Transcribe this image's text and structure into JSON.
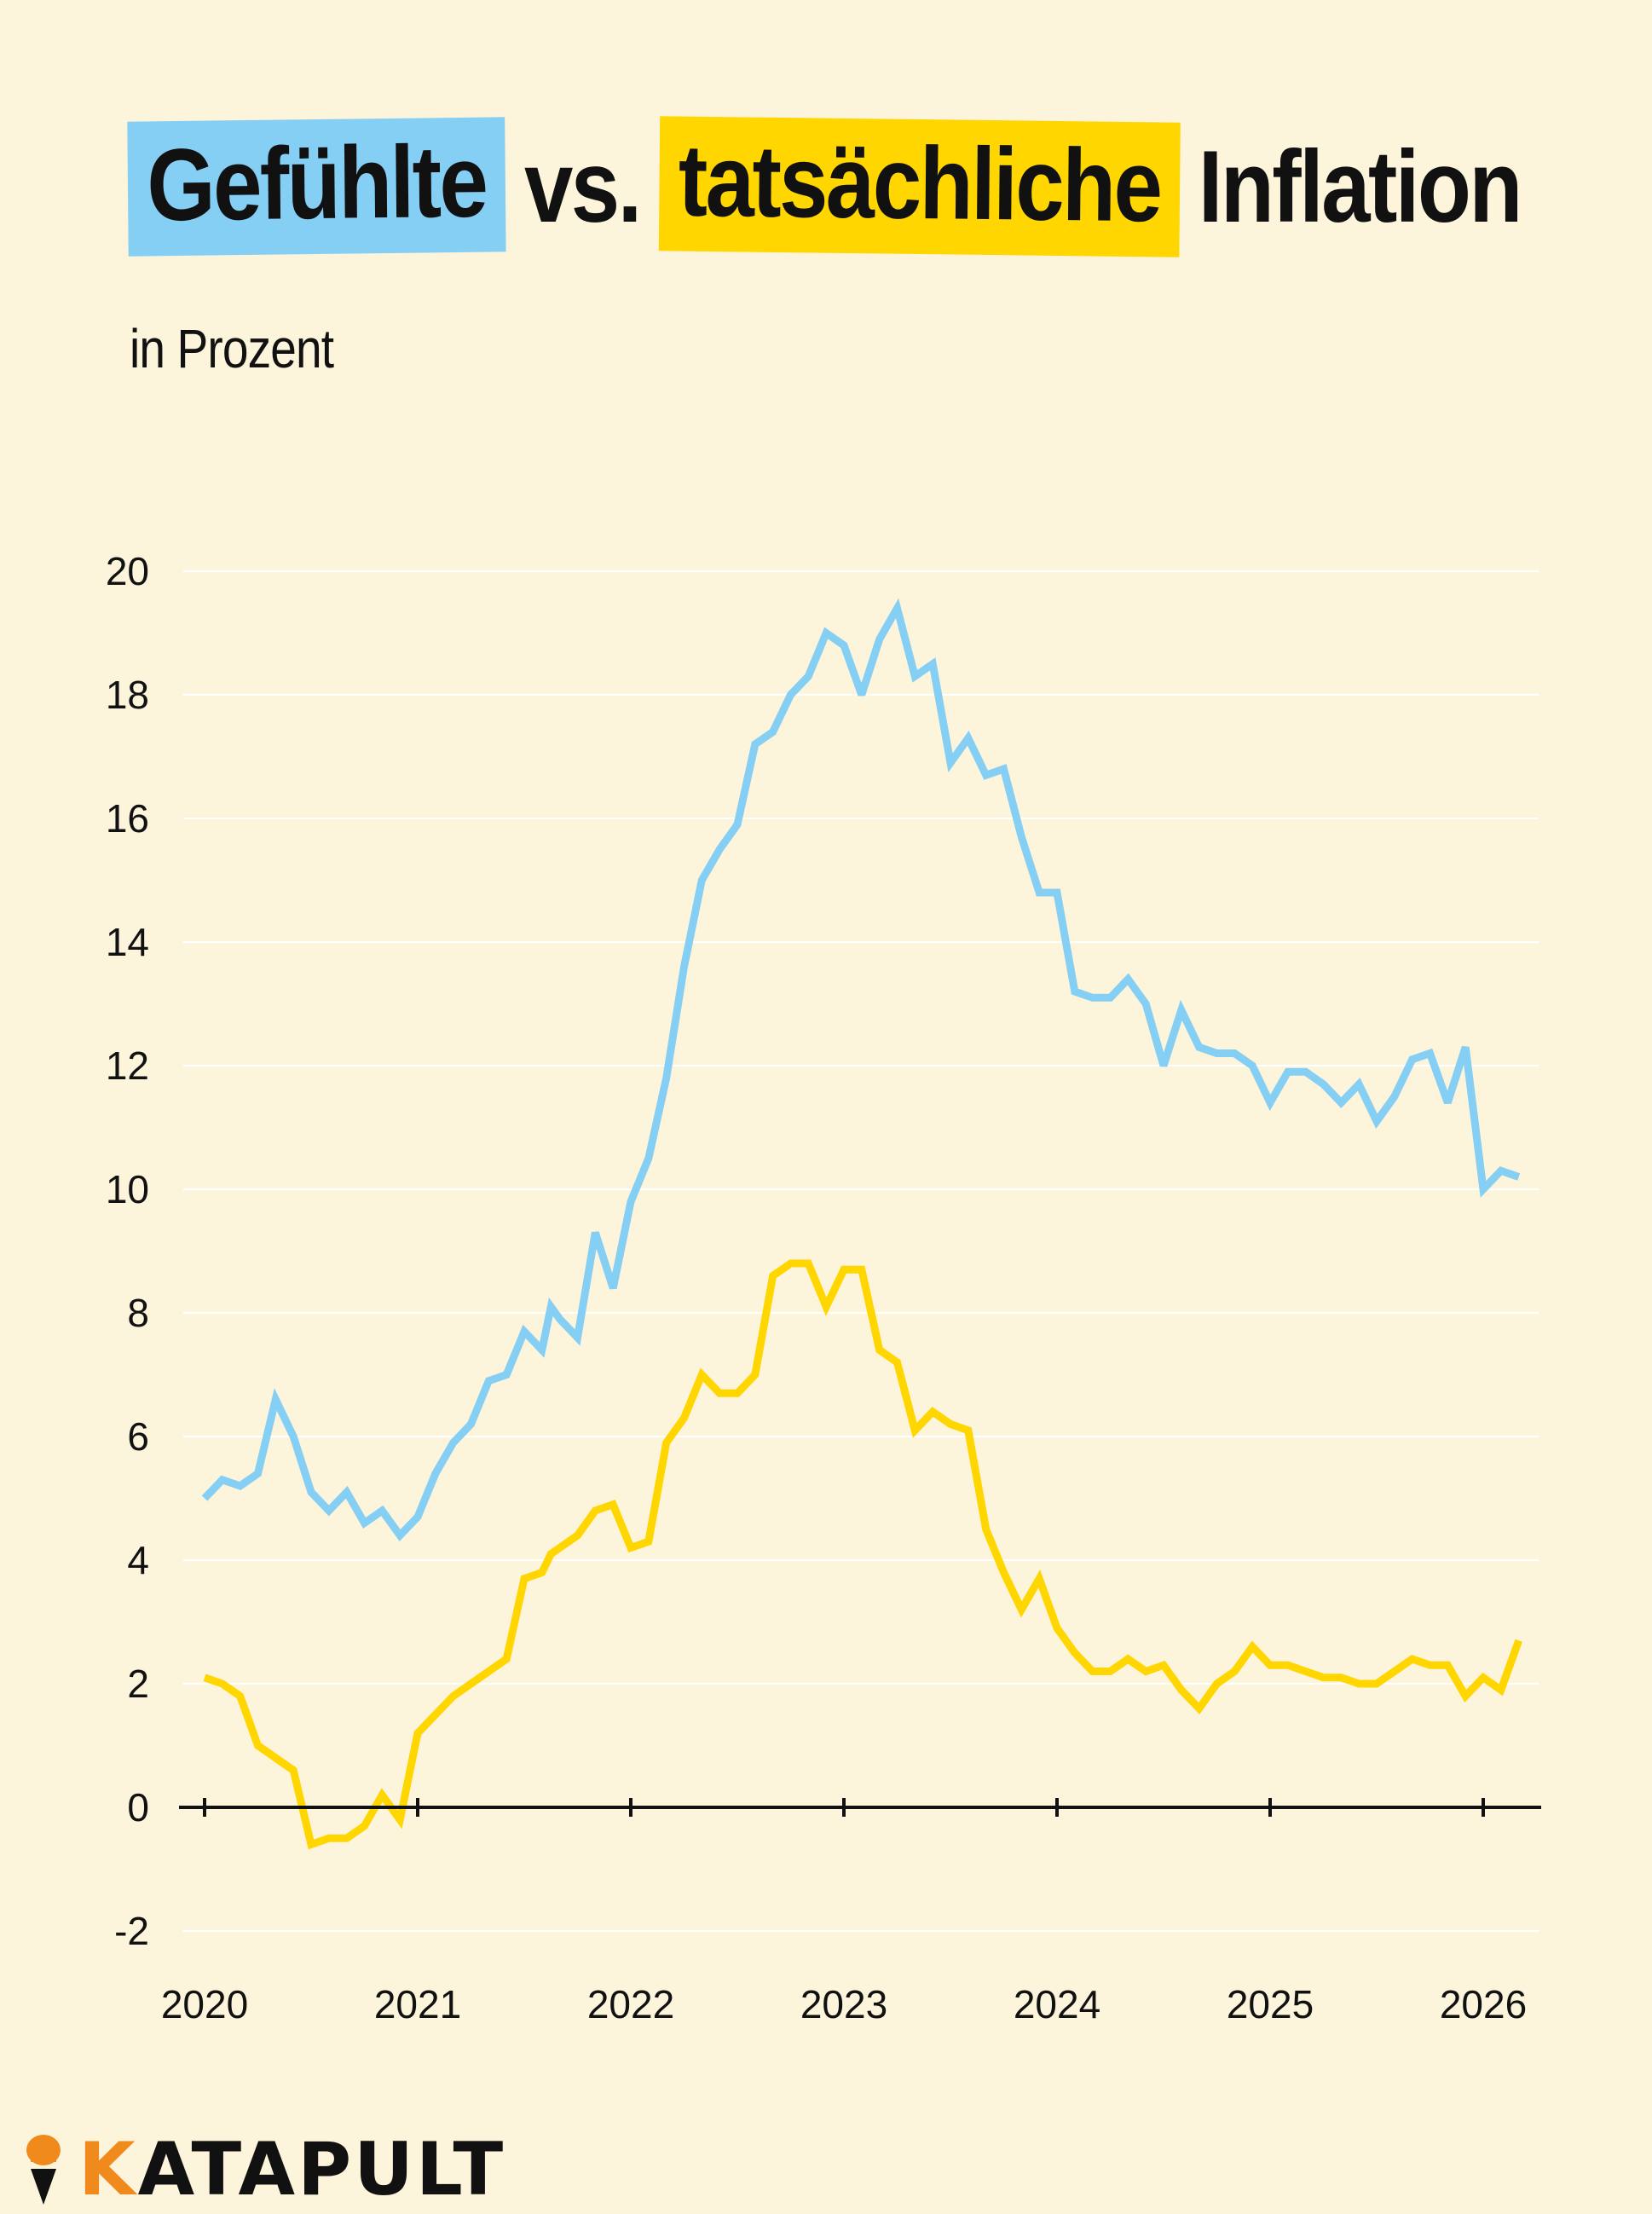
{
  "title": {
    "part1": "Gefühlte",
    "part2": "vs.",
    "part3": "tatsächliche",
    "part4": "Inflation"
  },
  "subtitle": "in Prozent",
  "colors": {
    "background": "#fdf4dc",
    "felt": "#86cff4",
    "actual": "#ffd600",
    "logo_accent": "#f08a1c"
  },
  "logo": {
    "first_letter": "K",
    "rest": "ATAPULT",
    "icon": "catapult-icon"
  },
  "chart_data": {
    "type": "line",
    "ylim": [
      -2,
      20
    ],
    "yticks": [
      -2,
      0,
      2,
      4,
      6,
      8,
      10,
      12,
      14,
      16,
      18,
      20
    ],
    "xlim": [
      2020,
      2026.28
    ],
    "xticks": [
      2020,
      2021,
      2022,
      2023,
      2024,
      2025,
      2026
    ],
    "grid": true,
    "legend": "none",
    "series": [
      {
        "color": "#86cff4",
        "x": [
          2020.0,
          2020.083,
          2020.167,
          2020.25,
          2020.333,
          2020.417,
          2020.5,
          2020.583,
          2020.667,
          2020.75,
          2020.833,
          2020.917,
          2021.0,
          2021.083,
          2021.167,
          2021.25,
          2021.333,
          2021.417,
          2021.5,
          2021.583,
          2021.625,
          2021.667,
          2021.75,
          2021.833,
          2021.917,
          2022.0,
          2022.083,
          2022.167,
          2022.25,
          2022.333,
          2022.417,
          2022.5,
          2022.583,
          2022.667,
          2022.75,
          2022.833,
          2022.917,
          2023.0,
          2023.083,
          2023.167,
          2023.25,
          2023.333,
          2023.417,
          2023.5,
          2023.583,
          2023.667,
          2023.75,
          2023.833,
          2023.917,
          2024.0,
          2024.083,
          2024.167,
          2024.25,
          2024.333,
          2024.417,
          2024.5,
          2024.583,
          2024.667,
          2024.75,
          2024.833,
          2024.917,
          2025.0,
          2025.083,
          2025.167,
          2025.25,
          2025.333,
          2025.417,
          2025.5,
          2025.583,
          2025.667,
          2025.75,
          2025.833,
          2025.917,
          2026.0,
          2026.083,
          2026.167
        ],
        "y": [
          5.0,
          5.3,
          5.2,
          5.4,
          6.6,
          6.0,
          5.1,
          4.8,
          5.1,
          4.6,
          4.8,
          4.4,
          4.7,
          5.4,
          5.9,
          6.2,
          6.9,
          7.0,
          7.7,
          7.4,
          8.1,
          7.9,
          7.6,
          9.3,
          8.4,
          9.8,
          10.5,
          11.8,
          13.6,
          15.0,
          15.5,
          15.9,
          17.2,
          17.4,
          18.0,
          18.3,
          19.0,
          18.8,
          18.0,
          18.9,
          19.4,
          18.3,
          18.5,
          16.9,
          17.3,
          16.7,
          16.8,
          15.7,
          14.8,
          14.8,
          13.2,
          13.1,
          13.1,
          13.4,
          13.0,
          12.0,
          12.9,
          12.3,
          12.2,
          12.2,
          12.0,
          11.4,
          11.9,
          11.9,
          11.7,
          11.4,
          11.7,
          11.1,
          11.5,
          12.1,
          12.2,
          11.4,
          12.3,
          10.0,
          10.3,
          10.2
        ]
      },
      {
        "color": "#ffd600",
        "x": [
          2020.0,
          2020.083,
          2020.167,
          2020.25,
          2020.333,
          2020.417,
          2020.5,
          2020.583,
          2020.667,
          2020.75,
          2020.833,
          2020.917,
          2021.0,
          2021.083,
          2021.167,
          2021.25,
          2021.333,
          2021.417,
          2021.5,
          2021.583,
          2021.625,
          2021.667,
          2021.75,
          2021.833,
          2021.917,
          2022.0,
          2022.083,
          2022.167,
          2022.25,
          2022.333,
          2022.417,
          2022.5,
          2022.583,
          2022.667,
          2022.75,
          2022.833,
          2022.917,
          2023.0,
          2023.083,
          2023.167,
          2023.25,
          2023.333,
          2023.417,
          2023.5,
          2023.583,
          2023.667,
          2023.75,
          2023.833,
          2023.917,
          2024.0,
          2024.083,
          2024.167,
          2024.25,
          2024.333,
          2024.417,
          2024.5,
          2024.583,
          2024.667,
          2024.75,
          2024.833,
          2024.917,
          2025.0,
          2025.083,
          2025.167,
          2025.25,
          2025.333,
          2025.417,
          2025.5,
          2025.583,
          2025.667,
          2025.75,
          2025.833,
          2025.917,
          2026.0,
          2026.083,
          2026.167
        ],
        "y": [
          2.1,
          2.0,
          1.8,
          1.0,
          0.8,
          0.6,
          -0.6,
          -0.5,
          -0.5,
          -0.3,
          0.2,
          -0.2,
          1.2,
          1.5,
          1.8,
          2.0,
          2.2,
          2.4,
          3.7,
          3.8,
          4.1,
          4.2,
          4.4,
          4.8,
          4.9,
          4.2,
          4.3,
          5.9,
          6.3,
          7.0,
          6.7,
          6.7,
          7.0,
          8.6,
          8.8,
          8.8,
          8.1,
          8.7,
          8.7,
          7.4,
          7.2,
          6.1,
          6.4,
          6.2,
          6.1,
          4.5,
          3.8,
          3.2,
          3.7,
          2.9,
          2.5,
          2.2,
          2.2,
          2.4,
          2.2,
          2.3,
          1.9,
          1.6,
          2.0,
          2.2,
          2.6,
          2.3,
          2.3,
          2.2,
          2.1,
          2.1,
          2.0,
          2.0,
          2.2,
          2.4,
          2.3,
          2.3,
          1.8,
          2.1,
          1.9,
          2.7
        ]
      }
    ]
  }
}
